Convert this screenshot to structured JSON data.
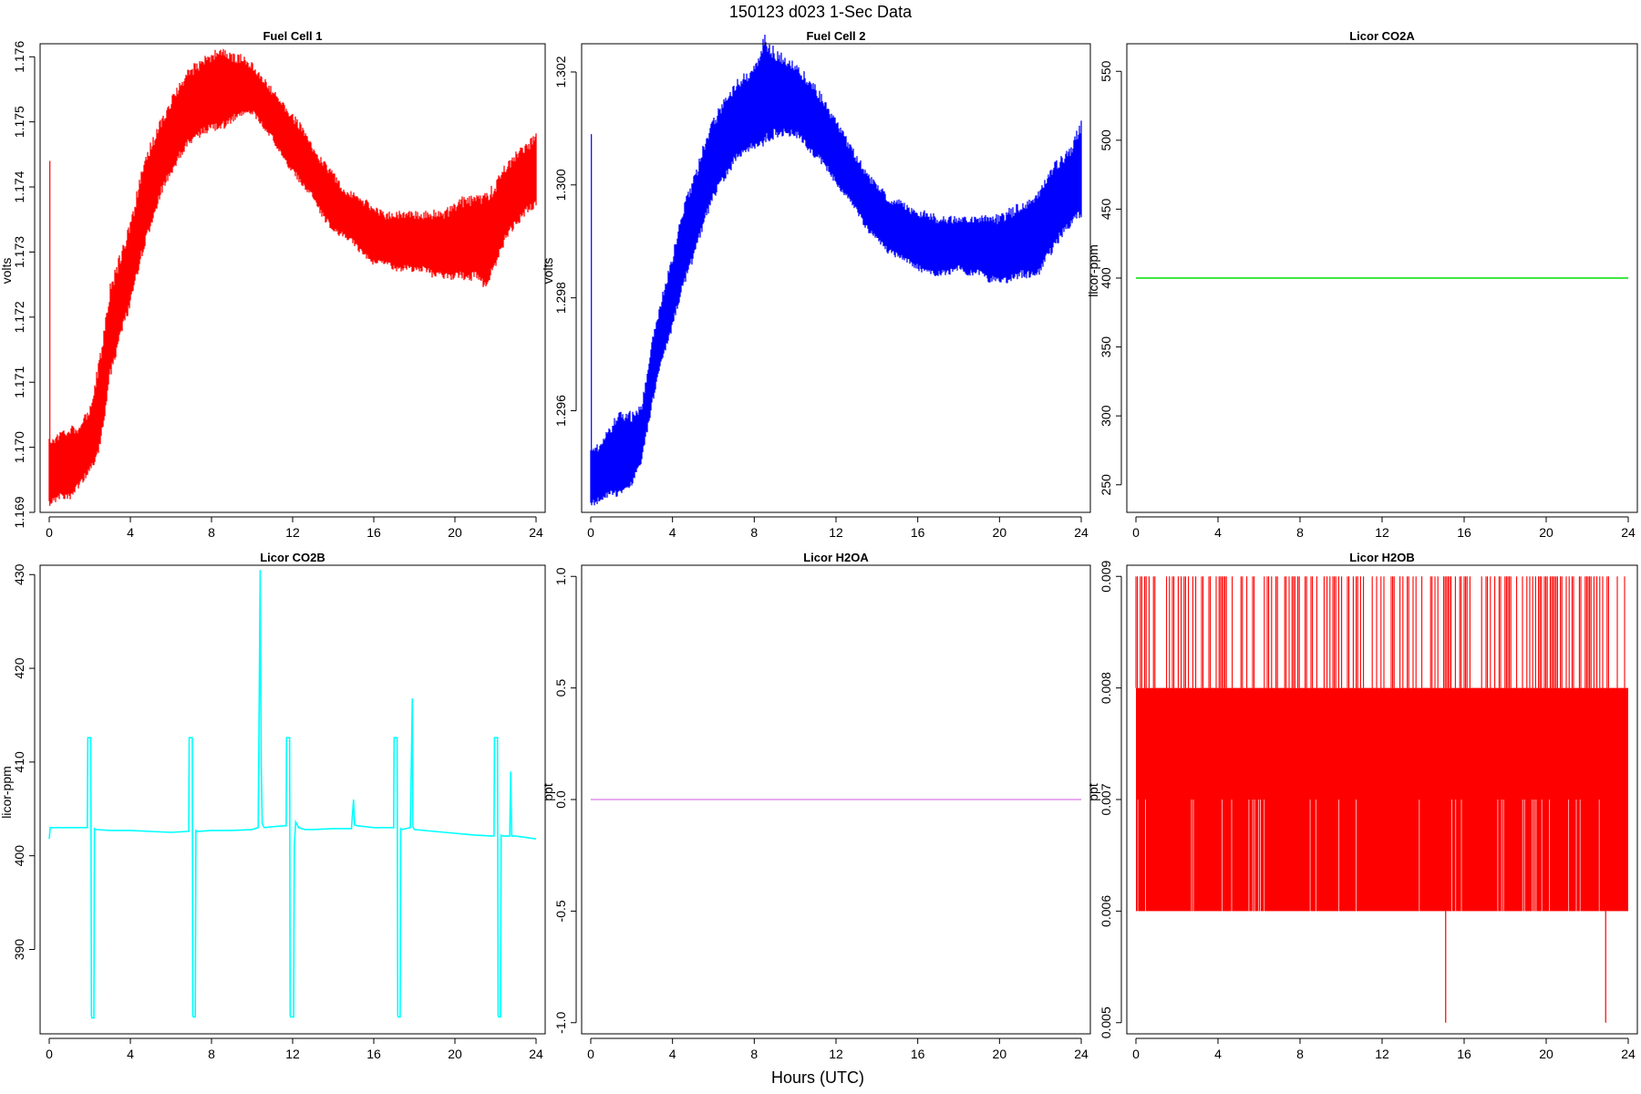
{
  "figure": {
    "title": "150123   d023   1-Sec Data",
    "xlabel": "Hours (UTC)"
  },
  "chart_data": [
    {
      "type": "line",
      "title": "Fuel Cell 1",
      "ylabel": "volts",
      "color": "#ff0000",
      "xlim": [
        0,
        24
      ],
      "ylim": [
        1.169,
        1.1762
      ],
      "xticks": [
        0,
        4,
        8,
        12,
        16,
        20,
        24
      ],
      "yticks": [
        1.169,
        1.17,
        1.171,
        1.172,
        1.173,
        1.174,
        1.175,
        1.176
      ],
      "ytick_labels": [
        "1.169",
        "1.170",
        "1.171",
        "1.172",
        "1.173",
        "1.174",
        "1.175",
        "1.176"
      ],
      "spikes": [
        {
          "x": 0.03,
          "low": 1.1691,
          "high": 1.1744
        }
      ],
      "series": [
        {
          "x": [
            0,
            0.5,
            1.0,
            1.5,
            2.0,
            2.5,
            3.0,
            3.5,
            4.0,
            4.5,
            5.0,
            5.5,
            6.0,
            6.5,
            7.0,
            7.5,
            8.0,
            8.5,
            9.0,
            9.5,
            10.0,
            10.5,
            11.0,
            11.5,
            12.0,
            12.5,
            13.0,
            13.5,
            14.0,
            14.5,
            15.0,
            15.5,
            16.0,
            16.5,
            17.0,
            17.5,
            18.0,
            18.5,
            19.0,
            19.5,
            20.0,
            20.5,
            21.0,
            21.5,
            22.0,
            22.5,
            23.0,
            23.5,
            24.0
          ],
          "low": [
            1.1692,
            1.1693,
            1.1693,
            1.1695,
            1.1697,
            1.1701,
            1.1712,
            1.1718,
            1.1723,
            1.173,
            1.1735,
            1.174,
            1.1743,
            1.1746,
            1.1748,
            1.1749,
            1.175,
            1.175,
            1.1751,
            1.1752,
            1.1752,
            1.175,
            1.1748,
            1.1745,
            1.1743,
            1.1741,
            1.1739,
            1.1736,
            1.1734,
            1.1733,
            1.1732,
            1.173,
            1.1729,
            1.1729,
            1.1728,
            1.1728,
            1.1728,
            1.1728,
            1.1727,
            1.1727,
            1.1727,
            1.1727,
            1.1727,
            1.1726,
            1.1729,
            1.1733,
            1.1735,
            1.1737,
            1.1738
          ],
          "high": [
            1.17,
            1.1701,
            1.1702,
            1.1702,
            1.1705,
            1.1712,
            1.1723,
            1.1728,
            1.1733,
            1.174,
            1.1745,
            1.1749,
            1.1752,
            1.1755,
            1.1757,
            1.1758,
            1.1759,
            1.176,
            1.1759,
            1.1759,
            1.1758,
            1.1756,
            1.1754,
            1.1752,
            1.175,
            1.1748,
            1.1745,
            1.1743,
            1.1741,
            1.1739,
            1.1738,
            1.1737,
            1.1736,
            1.1735,
            1.1735,
            1.1735,
            1.1735,
            1.1735,
            1.1735,
            1.1735,
            1.1736,
            1.1737,
            1.1737,
            1.1737,
            1.1739,
            1.1742,
            1.1744,
            1.1745,
            1.1747
          ]
        }
      ]
    },
    {
      "type": "line",
      "title": "Fuel Cell 2",
      "ylabel": "volts",
      "color": "#0000ff",
      "xlim": [
        0,
        24
      ],
      "ylim": [
        1.2942,
        1.3025
      ],
      "xticks": [
        0,
        4,
        8,
        12,
        16,
        20,
        24
      ],
      "yticks": [
        1.296,
        1.298,
        1.3,
        1.302
      ],
      "ytick_labels": [
        "1.296",
        "1.298",
        "1.300",
        "1.302"
      ],
      "spikes": [
        {
          "x": 0.03,
          "low": 1.2944,
          "high": 1.3009
        }
      ],
      "series": [
        {
          "x": [
            0,
            0.5,
            1.0,
            1.5,
            2.0,
            2.5,
            3.0,
            3.5,
            4.0,
            4.5,
            5.0,
            5.5,
            6.0,
            6.5,
            7.0,
            7.5,
            8.0,
            8.5,
            9.0,
            9.5,
            10.0,
            10.5,
            11.0,
            11.5,
            12.0,
            12.5,
            13.0,
            13.5,
            14.0,
            14.5,
            15.0,
            15.5,
            16.0,
            16.5,
            17.0,
            17.5,
            18.0,
            18.5,
            19.0,
            19.5,
            20.0,
            20.5,
            21.0,
            21.5,
            22.0,
            22.5,
            23.0,
            23.5,
            24.0
          ],
          "low": [
            1.2944,
            1.2945,
            1.2946,
            1.2946,
            1.2948,
            1.2952,
            1.2962,
            1.297,
            1.2976,
            1.2983,
            1.2988,
            1.2994,
            1.2999,
            1.3002,
            1.3005,
            1.3007,
            1.3008,
            1.3009,
            1.301,
            1.301,
            1.301,
            1.3008,
            1.3006,
            1.3004,
            1.3001,
            1.2999,
            1.2996,
            1.2993,
            1.2991,
            1.2989,
            1.2988,
            1.2987,
            1.2986,
            1.2985,
            1.2985,
            1.2985,
            1.2986,
            1.2985,
            1.2985,
            1.2984,
            1.2984,
            1.2984,
            1.2985,
            1.2985,
            1.2986,
            1.2989,
            1.2992,
            1.2994,
            1.2996
          ],
          "high": [
            1.2952,
            1.2953,
            1.2956,
            1.2958,
            1.2958,
            1.296,
            1.2971,
            1.2979,
            1.2986,
            1.2994,
            1.2999,
            1.3005,
            1.301,
            1.3013,
            1.3016,
            1.3018,
            1.3019,
            1.3024,
            1.3022,
            1.3021,
            1.302,
            1.3018,
            1.3016,
            1.3013,
            1.301,
            1.3007,
            1.3004,
            1.3001,
            1.2999,
            1.2997,
            1.2996,
            1.2995,
            1.2994,
            1.2994,
            1.2993,
            1.2993,
            1.2993,
            1.2993,
            1.2993,
            1.2993,
            1.2993,
            1.2994,
            1.2995,
            1.2996,
            1.2998,
            1.3001,
            1.3003,
            1.3005,
            1.3009
          ]
        }
      ]
    },
    {
      "type": "line",
      "title": "Licor CO2A",
      "ylabel": "licor-ppm",
      "color": "#00dd00",
      "xlim": [
        0,
        24
      ],
      "ylim": [
        230,
        570
      ],
      "xticks": [
        0,
        4,
        8,
        12,
        16,
        20,
        24
      ],
      "yticks": [
        250,
        300,
        350,
        400,
        450,
        500,
        550
      ],
      "ytick_labels": [
        "250",
        "300",
        "350",
        "400",
        "450",
        "500",
        "550"
      ],
      "series": [
        {
          "x": [
            0,
            24
          ],
          "y": [
            400,
            400
          ]
        }
      ]
    },
    {
      "type": "line",
      "title": "Licor CO2B",
      "ylabel": "licor-ppm",
      "color": "#00ffff",
      "xlim": [
        0,
        24
      ],
      "ylim": [
        381,
        431
      ],
      "xticks": [
        0,
        4,
        8,
        12,
        16,
        20,
        24
      ],
      "yticks": [
        390,
        400,
        410,
        420,
        430
      ],
      "ytick_labels": [
        "390",
        "400",
        "410",
        "420",
        "430"
      ],
      "series": [
        {
          "x": [
            0,
            0.05,
            0.3,
            1.0,
            1.8,
            1.88,
            1.9,
            2.05,
            2.08,
            2.1,
            2.2,
            2.23,
            2.3,
            3.0,
            4.0,
            5.0,
            6.0,
            6.8,
            6.88,
            6.9,
            7.05,
            7.08,
            7.1,
            7.2,
            7.23,
            7.3,
            8.0,
            9.0,
            10.0,
            10.3,
            10.35,
            10.4,
            10.45,
            10.5,
            10.55,
            10.6,
            11.0,
            11.6,
            11.68,
            11.7,
            11.85,
            11.88,
            11.9,
            12.05,
            12.08,
            12.15,
            12.3,
            12.6,
            13.0,
            14.0,
            14.9,
            15.0,
            15.05,
            15.2,
            16.0,
            16.9,
            16.98,
            17.0,
            17.15,
            17.18,
            17.2,
            17.3,
            17.33,
            17.4,
            17.8,
            17.9,
            17.93,
            18.0,
            19.0,
            20.0,
            21.0,
            21.85,
            21.93,
            21.95,
            22.1,
            22.13,
            22.15,
            22.25,
            22.28,
            22.4,
            22.7,
            22.75,
            22.8,
            23.0,
            24.0
          ],
          "y": [
            401.8,
            403.0,
            403.0,
            403.0,
            403.0,
            403.0,
            412.6,
            412.6,
            383.0,
            382.7,
            382.7,
            402.9,
            402.8,
            402.7,
            402.7,
            402.6,
            402.5,
            402.6,
            402.6,
            412.6,
            412.6,
            383.0,
            382.8,
            382.8,
            402.7,
            402.6,
            402.7,
            402.7,
            402.8,
            403.0,
            416.0,
            430.5,
            410.0,
            403.5,
            403.2,
            403.0,
            403.1,
            403.2,
            403.2,
            412.6,
            412.6,
            383.0,
            382.8,
            382.8,
            401.0,
            403.6,
            403.0,
            402.8,
            402.8,
            402.9,
            402.9,
            406.0,
            403.3,
            403.2,
            403.0,
            403.0,
            403.0,
            412.6,
            412.6,
            383.0,
            382.8,
            382.8,
            402.9,
            402.8,
            403.0,
            416.8,
            403.1,
            402.8,
            402.6,
            402.4,
            402.2,
            402.1,
            402.1,
            412.6,
            412.6,
            383.0,
            382.8,
            382.8,
            402.2,
            402.1,
            402.1,
            409.0,
            402.1,
            402.1,
            401.8
          ]
        }
      ]
    },
    {
      "type": "line",
      "title": "Licor H2OA",
      "ylabel": "ppt",
      "color": "#e08fe8",
      "xlim": [
        0,
        24
      ],
      "ylim": [
        -1.05,
        1.05
      ],
      "xticks": [
        0,
        4,
        8,
        12,
        16,
        20,
        24
      ],
      "yticks": [
        -1.0,
        -0.5,
        0.0,
        0.5,
        1.0
      ],
      "ytick_labels": [
        "-1.0",
        "-0.5",
        "0.0",
        "0.5",
        "1.0"
      ],
      "series": [
        {
          "x": [
            0,
            24
          ],
          "y": [
            0,
            0
          ]
        }
      ]
    },
    {
      "type": "line",
      "title": "Licor H2OB",
      "ylabel": "ppt",
      "color": "#ff0000",
      "xlim": [
        0,
        24
      ],
      "ylim": [
        0.0049,
        0.0091
      ],
      "xticks": [
        0,
        4,
        8,
        12,
        16,
        20,
        24
      ],
      "yticks": [
        0.005,
        0.006,
        0.007,
        0.008,
        0.009
      ],
      "ytick_labels": [
        "0.005",
        "0.006",
        "0.007",
        "0.008",
        "0.009"
      ],
      "series": [
        {
          "x_range": [
            0,
            24
          ],
          "band_low": 0.006,
          "band_high": 0.008,
          "spike_high": 0.009,
          "dip_low": 0.007,
          "outliers_low": [
            {
              "x": 15.1,
              "y": 0.005
            },
            {
              "x": 22.9,
              "y": 0.005
            }
          ]
        }
      ]
    }
  ]
}
